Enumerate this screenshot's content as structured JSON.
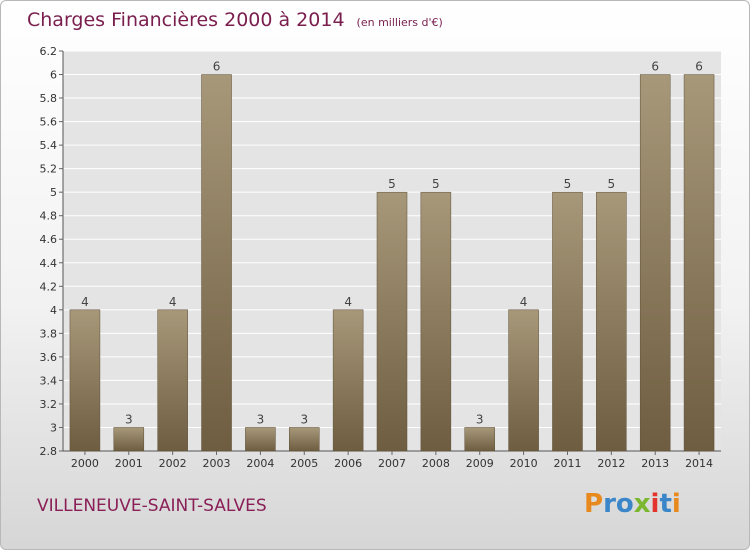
{
  "title": "Charges Financières 2000 à 2014",
  "subtitle": "(en milliers d'€)",
  "commune": "VILLENEUVE-SAINT-SALVES",
  "logo": {
    "text": "Proxiti",
    "letters": [
      {
        "char": "P",
        "color": "#e8891e"
      },
      {
        "char": "r",
        "color": "#3a86c8"
      },
      {
        "char": "o",
        "color": "#3a86c8"
      },
      {
        "char": "x",
        "color": "#7cb82f"
      },
      {
        "char": "i",
        "color": "#e2342c"
      },
      {
        "char": "t",
        "color": "#3a86c8"
      },
      {
        "char": "i",
        "color": "#e8891e"
      }
    ]
  },
  "chart_data": {
    "type": "bar",
    "title": "Charges Financières 2000 à 2014",
    "subtitle": "(en milliers d'€)",
    "categories": [
      "2000",
      "2001",
      "2002",
      "2003",
      "2004",
      "2005",
      "2006",
      "2007",
      "2008",
      "2009",
      "2010",
      "2011",
      "2012",
      "2013",
      "2014"
    ],
    "values": [
      4,
      3,
      4,
      6,
      3,
      3,
      4,
      5,
      5,
      3,
      4,
      5,
      5,
      6,
      6
    ],
    "value_labels": [
      "4",
      "3",
      "4",
      "6",
      "3",
      "3",
      "4",
      "5",
      "5",
      "3",
      "4",
      "5",
      "5",
      "6",
      "6"
    ],
    "y_ticks": [
      "6.2",
      "6",
      "5.8",
      "5.6",
      "5.4",
      "5.2",
      "5",
      "4.8",
      "4.6",
      "4.4",
      "4.2",
      "4",
      "3.8",
      "3.6",
      "3.4",
      "3.2",
      "3",
      "2.8"
    ],
    "ylim": [
      2.8,
      6.2
    ],
    "grid": true,
    "bar_color_top": "#a8987a",
    "bar_color_bottom": "#6e5d40"
  }
}
